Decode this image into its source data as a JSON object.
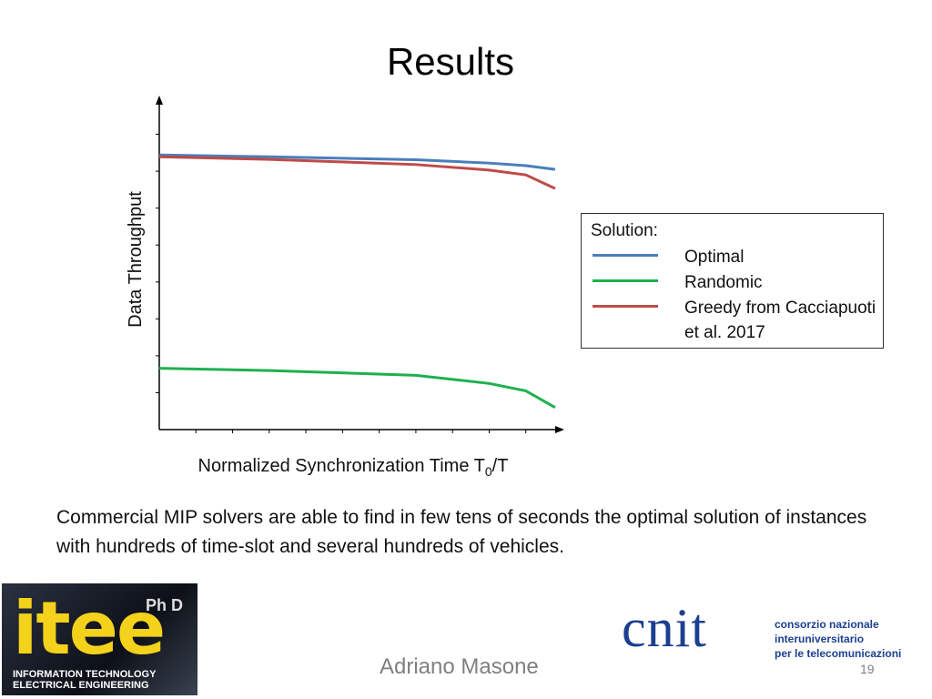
{
  "chart_data": {
    "type": "line",
    "title": "Results",
    "y_label": "Data Throughput",
    "x_label": [
      "Normalized Synchronization Time T",
      "0",
      "/T"
    ],
    "x": [
      0,
      3,
      7,
      9,
      10,
      10.8
    ],
    "xlim": [
      0,
      11
    ],
    "xticks": [
      1,
      2,
      3,
      4,
      5,
      6,
      7,
      8,
      9,
      10
    ],
    "ylim": [
      0,
      9
    ],
    "yticks": [
      1,
      2,
      3,
      4,
      5,
      6,
      7,
      8
    ],
    "legend_title": "Solution:",
    "series": [
      {
        "name": "Optimal",
        "color": "#4a7ebb",
        "values": [
          7.44,
          7.39,
          7.31,
          7.22,
          7.15,
          7.05
        ]
      },
      {
        "name": "Randomic",
        "color": "#1fb04f",
        "values": [
          1.66,
          1.6,
          1.47,
          1.25,
          1.05,
          0.6
        ]
      },
      {
        "name": "Greedy from Cacciapuoti et al. 2017",
        "color": "#be4b48",
        "values": [
          7.39,
          7.32,
          7.18,
          7.03,
          6.9,
          6.53
        ]
      }
    ]
  },
  "slide": {
    "caption": "Commercial MIP solvers are able to find in few tens of seconds the optimal solution of instances with hundreds of time-slot and several hundreds of vehicles.",
    "author": "Adriano Masone",
    "page": "19",
    "logo_left": {
      "badge": "Ph D",
      "name": "itee",
      "line1": "INFORMATION TECHNOLOGY",
      "line2": "ELECTRICAL ENGINEERING"
    },
    "logo_right": {
      "name": "cnit",
      "line1": "consorzio nazionale",
      "line2": "interuniversitario",
      "line3": "per le telecomunicazioni"
    }
  }
}
